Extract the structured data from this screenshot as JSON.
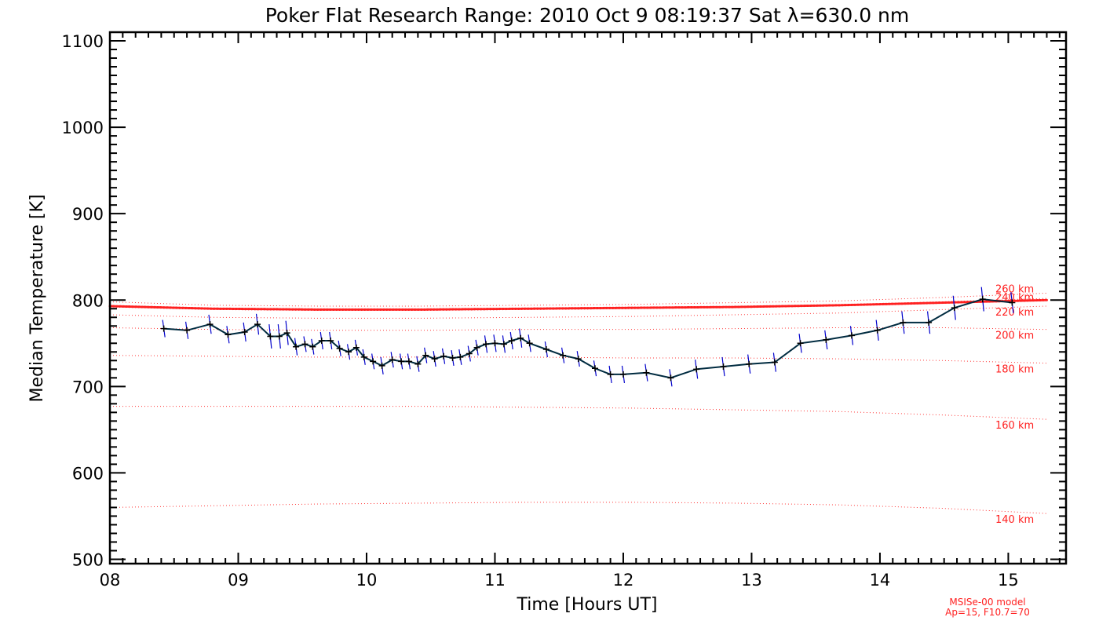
{
  "chart_data": {
    "type": "line",
    "title": "Poker Flat Research Range: 2010 Oct  9 08:19:37 Sat λ=630.0 nm",
    "xlabel": "Time [Hours UT]",
    "ylabel": "Median Temperature [K]",
    "xlim": [
      8,
      15.45
    ],
    "ylim": [
      495,
      1110
    ],
    "xticks": [
      8,
      9,
      10,
      11,
      12,
      13,
      14,
      15
    ],
    "xtick_labels": [
      "08",
      "09",
      "10",
      "11",
      "12",
      "13",
      "14",
      "15"
    ],
    "yticks": [
      500,
      600,
      700,
      800,
      900,
      1000,
      1100
    ],
    "ytick_labels": [
      "500",
      "600",
      "700",
      "800",
      "900",
      "1000",
      "1100"
    ],
    "grid": false,
    "colors": {
      "measurement": "#002b40",
      "errorbar": "#0000cc",
      "model": "#ff2020"
    },
    "series": [
      {
        "x": [
          8.42,
          8.6,
          8.78,
          8.92,
          9.05,
          9.15,
          9.25,
          9.32,
          9.38,
          9.45,
          9.52,
          9.58,
          9.65,
          9.72,
          9.79,
          9.86,
          9.92,
          9.98,
          10.05,
          10.12,
          10.2,
          10.27,
          10.33,
          10.4,
          10.46,
          10.53,
          10.6,
          10.67,
          10.73,
          10.8,
          10.86,
          10.93,
          11.0,
          11.07,
          11.13,
          11.2,
          11.27,
          11.4,
          11.53,
          11.65,
          11.78,
          11.9,
          12.0,
          12.18,
          12.37,
          12.57,
          12.78,
          12.98,
          13.18,
          13.38,
          13.58,
          13.78,
          13.98,
          14.18,
          14.38,
          14.58,
          14.8,
          15.03
        ],
        "values": [
          767,
          765,
          772,
          760,
          763,
          772,
          758,
          758,
          762,
          746,
          749,
          746,
          753,
          753,
          744,
          740,
          745,
          734,
          729,
          724,
          731,
          729,
          729,
          726,
          736,
          732,
          735,
          733,
          734,
          738,
          745,
          749,
          750,
          749,
          753,
          756,
          750,
          743,
          736,
          732,
          721,
          714,
          714,
          716,
          710,
          720,
          723,
          726,
          728,
          750,
          754,
          759,
          765,
          774,
          774,
          791,
          801,
          797
        ],
        "errors": [
          10,
          10,
          11,
          10,
          11,
          12,
          14,
          14,
          14,
          10,
          9,
          9,
          10,
          10,
          9,
          9,
          9,
          9,
          9,
          10,
          9,
          9,
          9,
          9,
          9,
          9,
          9,
          9,
          9,
          9,
          9,
          10,
          10,
          10,
          10,
          11,
          10,
          9,
          9,
          9,
          9,
          10,
          10,
          10,
          10,
          11,
          11,
          11,
          11,
          11,
          11,
          11,
          12,
          13,
          13,
          14,
          14,
          12
        ]
      }
    ],
    "msis_model": {
      "x": [
        8.0,
        15.3
      ],
      "main_curve": [
        793,
        790,
        789,
        789,
        790,
        791,
        792,
        794,
        797,
        800
      ],
      "altitude_curves": [
        {
          "label": "260 km",
          "values": [
            798,
            794,
            793,
            793,
            794,
            795,
            797,
            799,
            803,
            808
          ]
        },
        {
          "label": "240 km",
          "values": [
            792,
            789,
            788,
            788,
            789,
            790,
            792,
            794,
            798,
            802
          ]
        },
        {
          "label": "220 km",
          "values": [
            783,
            780,
            779,
            779,
            780,
            781,
            783,
            785,
            789,
            793
          ]
        },
        {
          "label": "200 km",
          "values": [
            768,
            766,
            765,
            765,
            766,
            766,
            767,
            768,
            768,
            766
          ]
        },
        {
          "label": "180 km",
          "values": [
            736,
            735,
            734,
            734,
            734,
            733,
            733,
            732,
            730,
            727
          ]
        },
        {
          "label": "160 km",
          "values": [
            677,
            677,
            677,
            677,
            676,
            675,
            673,
            671,
            667,
            662
          ]
        },
        {
          "label": "140 km",
          "values": [
            560,
            562,
            564,
            565,
            566,
            566,
            565,
            563,
            559,
            553
          ]
        }
      ]
    },
    "model_note": [
      "MSISe-00 model",
      "Ap=15, F10.7=70"
    ]
  }
}
